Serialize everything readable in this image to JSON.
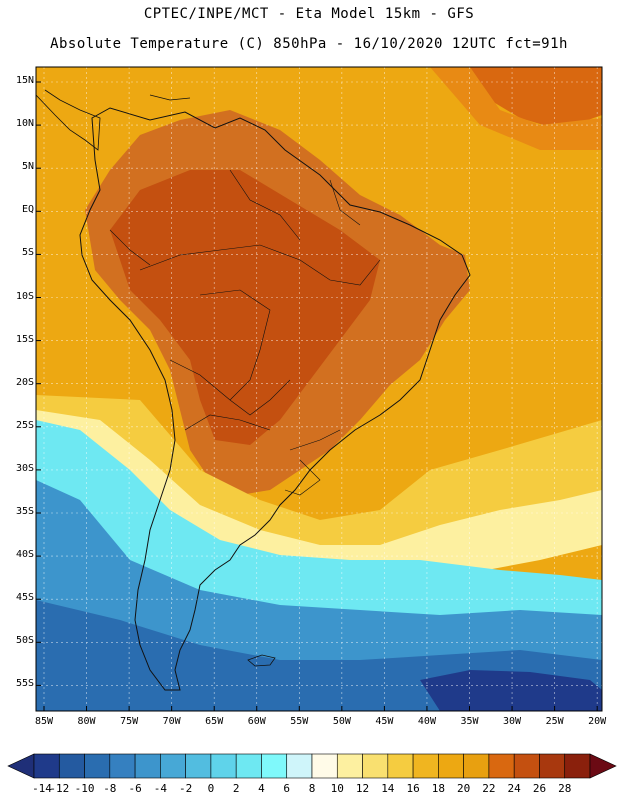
{
  "header": {
    "line1": "CPTEC/INPE/MCT -  Eta Model 15km - GFS",
    "line2": "Absolute Temperature (C) 850hPa - 16/10/2020 12UTC fct=91h"
  },
  "axes": {
    "lat_labels": [
      "15N",
      "10N",
      "5N",
      "EQ",
      "5S",
      "10S",
      "15S",
      "20S",
      "25S",
      "30S",
      "35S",
      "40S",
      "45S",
      "50S",
      "55S"
    ],
    "lon_labels": [
      "85W",
      "80W",
      "75W",
      "70W",
      "65W",
      "60W",
      "55W",
      "50W",
      "45W",
      "40W",
      "35W",
      "30W",
      "25W",
      "20W"
    ]
  },
  "colorbar": {
    "labels": [
      "-14",
      "-12",
      "-10",
      "-8",
      "-6",
      "-4",
      "-2",
      "0",
      "2",
      "4",
      "6",
      "8",
      "10",
      "12",
      "14",
      "16",
      "18",
      "20",
      "22",
      "24",
      "26",
      "28"
    ],
    "colors": [
      "#1f3a8a",
      "#245aa0",
      "#2a6db0",
      "#3580c0",
      "#3d95cc",
      "#47a8d6",
      "#52bde0",
      "#5fd3ea",
      "#6ee8f2",
      "#7ff9fb",
      "#cff5fa",
      "#fffbe8",
      "#fdf0a0",
      "#f9e070",
      "#f5cc40",
      "#f0b520",
      "#eda812",
      "#e8a010",
      "#d96810",
      "#c45010",
      "#a8380e",
      "#8a200c"
    ]
  },
  "map": {
    "regions": [
      {
        "name": "background-warm",
        "level": "18",
        "color": "#eda812"
      },
      {
        "name": "north-ocean-hot",
        "level": "22",
        "color": "#d96810"
      },
      {
        "name": "continent-hot",
        "level": "22",
        "color": "#d27020"
      },
      {
        "name": "continent-core",
        "level": "24",
        "color": "#c45010"
      },
      {
        "name": "south-warm-band",
        "level": "14",
        "color": "#f5cc40"
      },
      {
        "name": "southern-cold",
        "level": "2",
        "color": "#6ee8f2"
      },
      {
        "name": "southern-deep-cold",
        "level": "-6",
        "color": "#3d95cc"
      },
      {
        "name": "southern-coldest",
        "level": "-10",
        "color": "#2a6db0"
      }
    ]
  }
}
